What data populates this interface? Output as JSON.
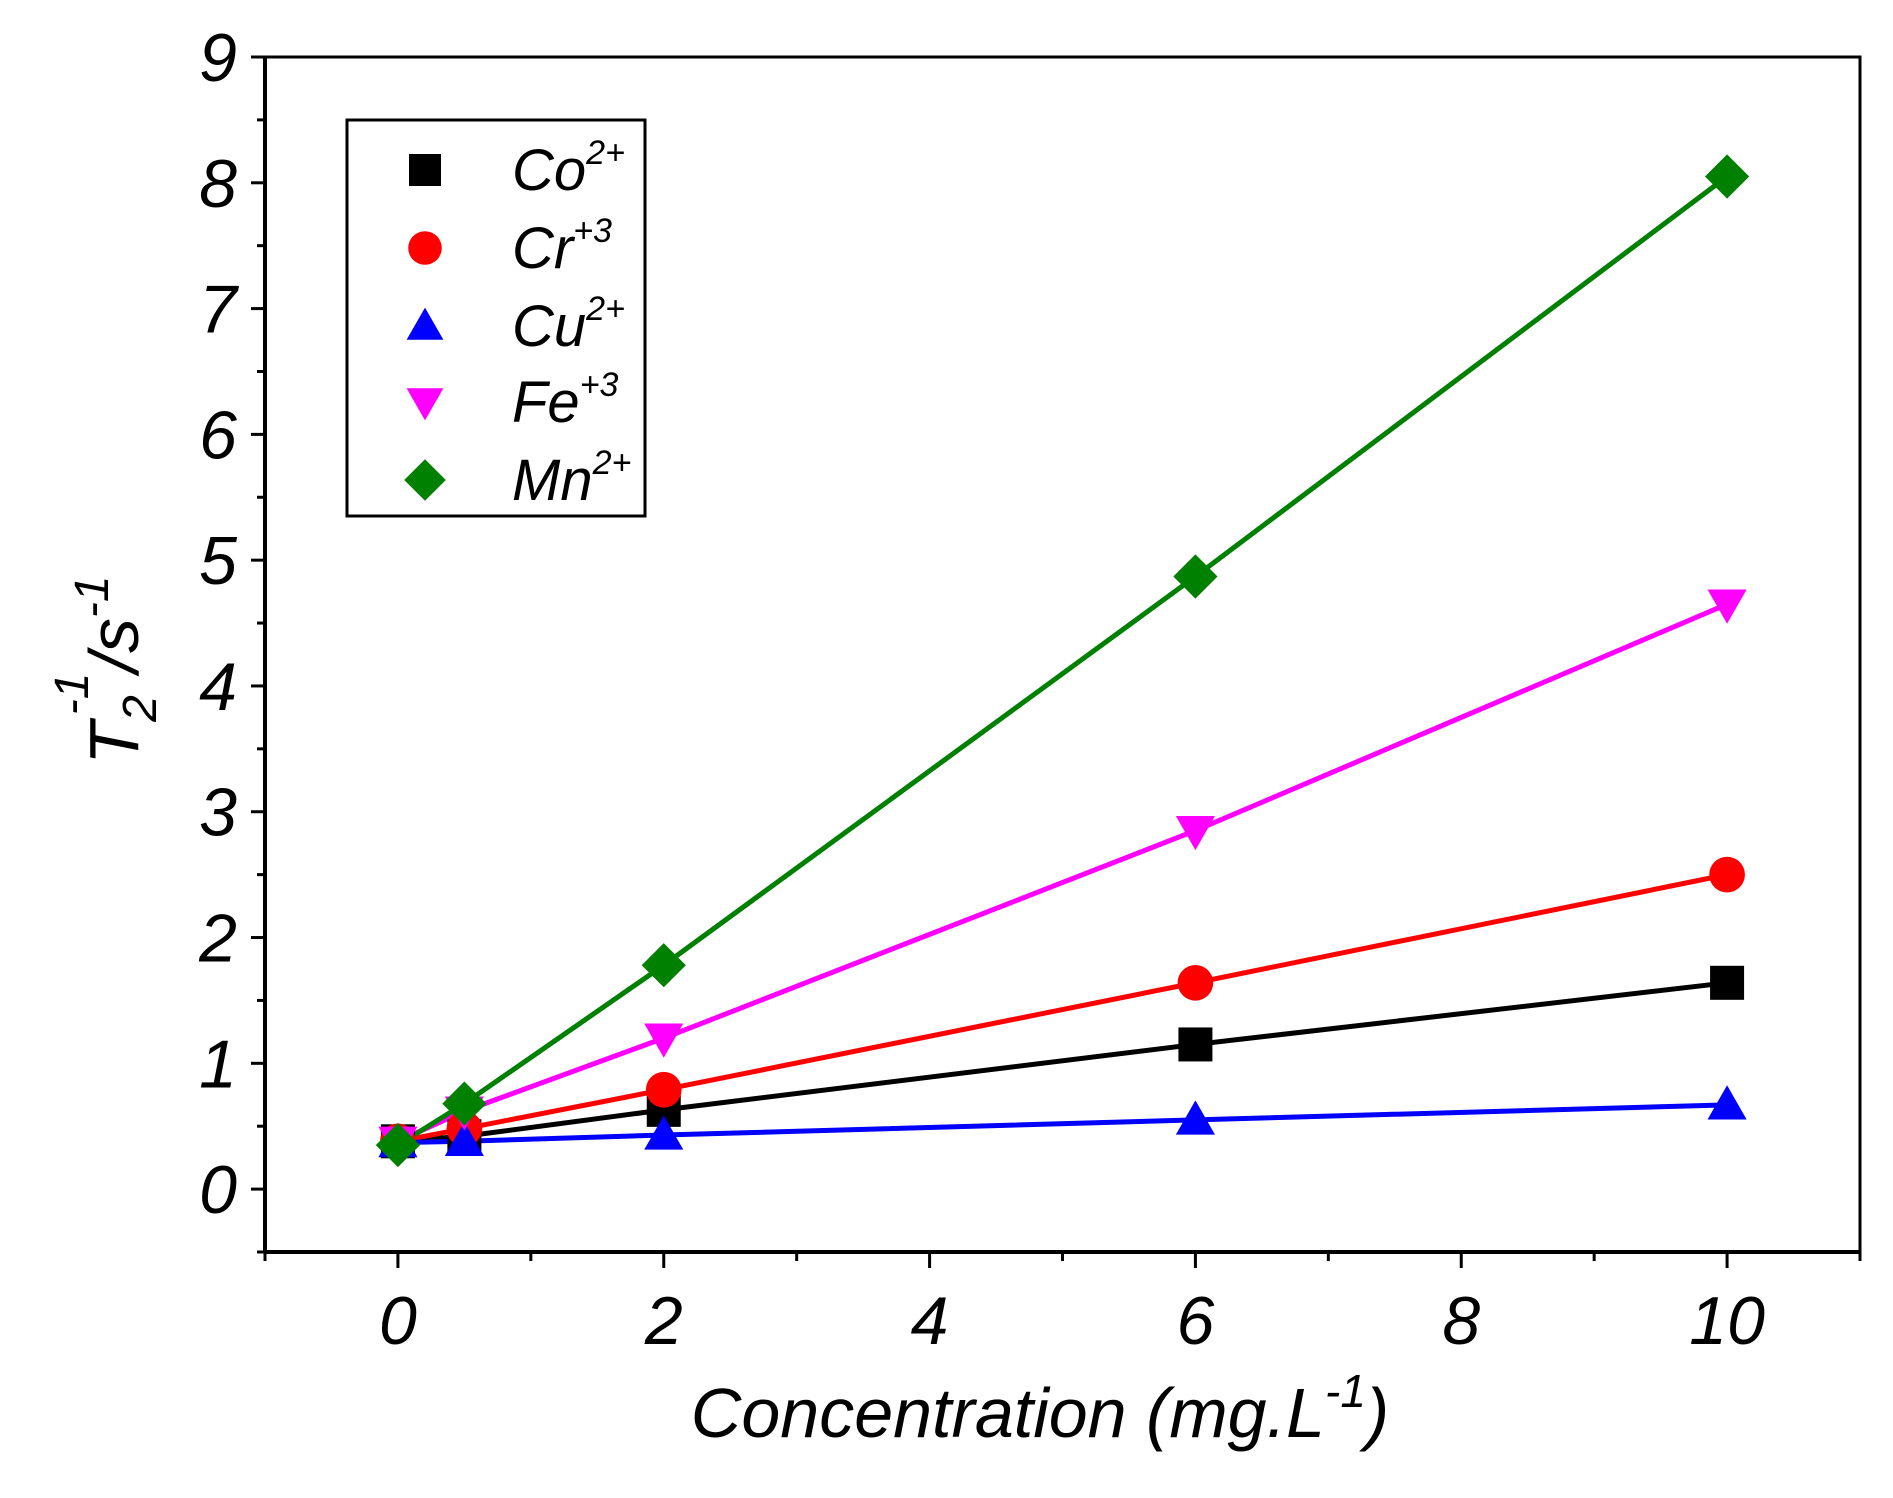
{
  "chart_data": {
    "type": "scatter",
    "xlabel": "Concentration (mg.L",
    "xlabel_sup": "-1",
    "xlabel_close": ")",
    "ylabel_base": "T",
    "ylabel_sub": "2",
    "ylabel_sup1": "-1",
    "ylabel_mid": "/s",
    "ylabel_sup2": "-1",
    "xlim": [
      -1,
      11
    ],
    "ylim": [
      -0.5,
      9
    ],
    "x_ticks": [
      0,
      2,
      4,
      6,
      8,
      10
    ],
    "x_tick_labels": [
      "0",
      "2",
      "4",
      "6",
      "8",
      "10"
    ],
    "y_ticks": [
      0,
      1,
      2,
      3,
      4,
      5,
      6,
      7,
      8,
      9
    ],
    "y_tick_labels": [
      "0",
      "1",
      "2",
      "3",
      "4",
      "5",
      "6",
      "7",
      "8",
      "9"
    ],
    "grid": false,
    "legend_position": "top-left",
    "series": [
      {
        "name": "Co",
        "sup": "2+",
        "color": "#000000",
        "marker": "square",
        "x": [
          0,
          0.5,
          2,
          6,
          10
        ],
        "y": [
          0.38,
          0.42,
          0.63,
          1.15,
          1.64
        ]
      },
      {
        "name": "Cr",
        "sup": "+3",
        "color": "#ff0000",
        "marker": "circle",
        "x": [
          0,
          0.5,
          2,
          6,
          10
        ],
        "y": [
          0.38,
          0.48,
          0.79,
          1.64,
          2.5
        ]
      },
      {
        "name": "Cu",
        "sup": "2+",
        "color": "#0000ff",
        "marker": "triangle-up",
        "x": [
          0,
          0.5,
          2,
          6,
          10
        ],
        "y": [
          0.37,
          0.38,
          0.43,
          0.55,
          0.67
        ]
      },
      {
        "name": "Fe",
        "sup": "+3",
        "color": "#ff00ff",
        "marker": "triangle-down",
        "x": [
          0,
          0.5,
          2,
          6,
          10
        ],
        "y": [
          0.38,
          0.62,
          1.2,
          2.85,
          4.65
        ]
      },
      {
        "name": "Mn",
        "sup": "2+",
        "color": "#008000",
        "marker": "diamond",
        "x": [
          0,
          0.5,
          2,
          6,
          10
        ],
        "y": [
          0.35,
          0.68,
          1.78,
          4.87,
          8.05
        ]
      }
    ]
  }
}
